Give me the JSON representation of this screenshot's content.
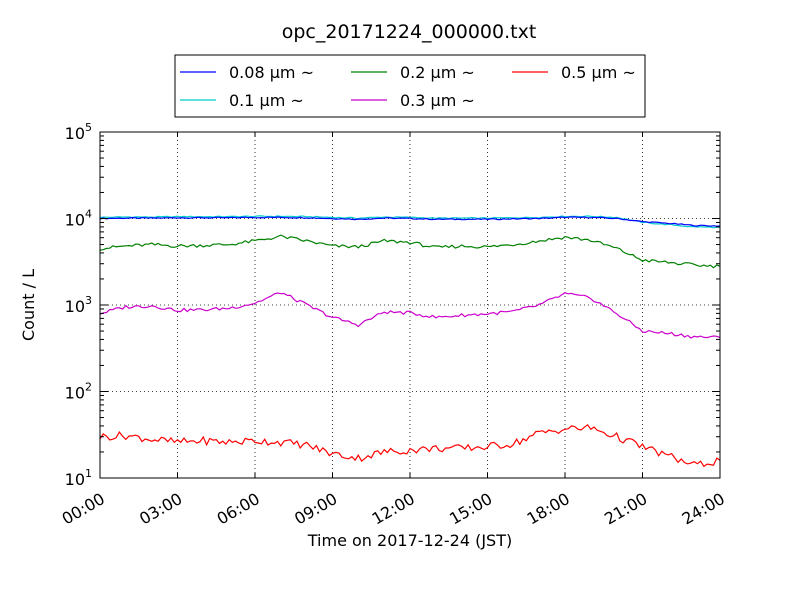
{
  "chart_data": {
    "type": "line",
    "title": "opc_20171224_000000.txt",
    "xlabel": "Time on 2017-12-24 (JST)",
    "ylabel": "Count / L",
    "yscale": "log",
    "ylim": [
      10,
      100000
    ],
    "xlim": [
      "00:00",
      "24:00"
    ],
    "grid": true,
    "legend_position": "top-center",
    "x_tick_labels": [
      "00:00",
      "03:00",
      "06:00",
      "09:00",
      "12:00",
      "15:00",
      "18:00",
      "21:00",
      "24:00"
    ],
    "y_tick_labels": [
      {
        "base": "10",
        "exp": "1"
      },
      {
        "base": "10",
        "exp": "2"
      },
      {
        "base": "10",
        "exp": "3"
      },
      {
        "base": "10",
        "exp": "4"
      },
      {
        "base": "10",
        "exp": "5"
      }
    ],
    "x": [
      "00:00",
      "01:00",
      "02:00",
      "03:00",
      "04:00",
      "05:00",
      "06:00",
      "07:00",
      "08:00",
      "09:00",
      "10:00",
      "11:00",
      "12:00",
      "13:00",
      "14:00",
      "15:00",
      "16:00",
      "17:00",
      "18:00",
      "19:00",
      "20:00",
      "21:00",
      "22:00",
      "23:00",
      "24:00"
    ],
    "series": [
      {
        "name": "0.08 μm ~",
        "color": "#0000ff",
        "values": [
          10000,
          10100,
          10100,
          10200,
          10200,
          10200,
          10300,
          10300,
          10200,
          10000,
          9800,
          10100,
          10000,
          9800,
          9800,
          9800,
          9900,
          10000,
          10300,
          10300,
          10000,
          9200,
          8800,
          8300,
          8200
        ]
      },
      {
        "name": "0.1 μm ~",
        "color": "#00cccc",
        "values": [
          10300,
          10400,
          10400,
          10500,
          10500,
          10500,
          10600,
          10600,
          10500,
          10300,
          10100,
          10400,
          10300,
          10100,
          10100,
          10100,
          10200,
          10300,
          10600,
          10600,
          10300,
          9000,
          8500,
          8000,
          7900
        ]
      },
      {
        "name": "0.2 μm ~",
        "color": "#008000",
        "values": [
          4500,
          4800,
          5000,
          4800,
          4900,
          5000,
          5500,
          6200,
          5500,
          4800,
          4700,
          5500,
          5300,
          4600,
          4800,
          4700,
          5000,
          5500,
          6100,
          5600,
          4500,
          3300,
          3100,
          2900,
          2800
        ]
      },
      {
        "name": "0.3 μm ~",
        "color": "#cc00cc",
        "values": [
          800,
          950,
          980,
          870,
          880,
          920,
          1050,
          1400,
          1000,
          720,
          590,
          830,
          810,
          720,
          760,
          790,
          840,
          1000,
          1350,
          1200,
          800,
          500,
          470,
          430,
          420
        ]
      },
      {
        "name": "0.5 μm ~",
        "color": "#ff0000",
        "values": [
          30,
          31,
          28,
          26,
          27,
          26,
          27,
          26,
          24,
          19,
          17,
          20,
          21,
          22,
          22,
          23,
          25,
          33,
          37,
          38,
          30,
          23,
          18,
          14,
          16
        ]
      }
    ]
  }
}
